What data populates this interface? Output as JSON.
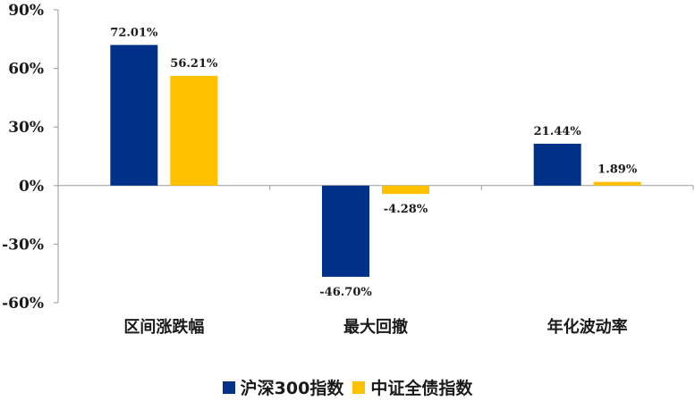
{
  "chart_data": {
    "type": "bar",
    "categories": [
      "区间涨跌幅",
      "最大回撤",
      "年化波动率"
    ],
    "series": [
      {
        "name": "沪深300指数",
        "color": "#003087",
        "values": [
          72.01,
          -46.7,
          21.44
        ],
        "labels": [
          "72.01%",
          "-46.70%",
          "21.44%"
        ]
      },
      {
        "name": "中证全债指数",
        "color": "#FFC000",
        "values": [
          56.21,
          -4.28,
          1.89
        ],
        "labels": [
          "56.21%",
          "-4.28%",
          "1.89%"
        ]
      }
    ],
    "ylim": [
      -60,
      90
    ],
    "yticks": [
      90,
      60,
      30,
      0,
      -30,
      -60
    ],
    "ytick_labels": [
      "90%",
      "60%",
      "30%",
      "0%",
      "-30%",
      "-60%"
    ],
    "title": "",
    "xlabel": "",
    "ylabel": "",
    "grid": false,
    "legend": "bottom"
  }
}
